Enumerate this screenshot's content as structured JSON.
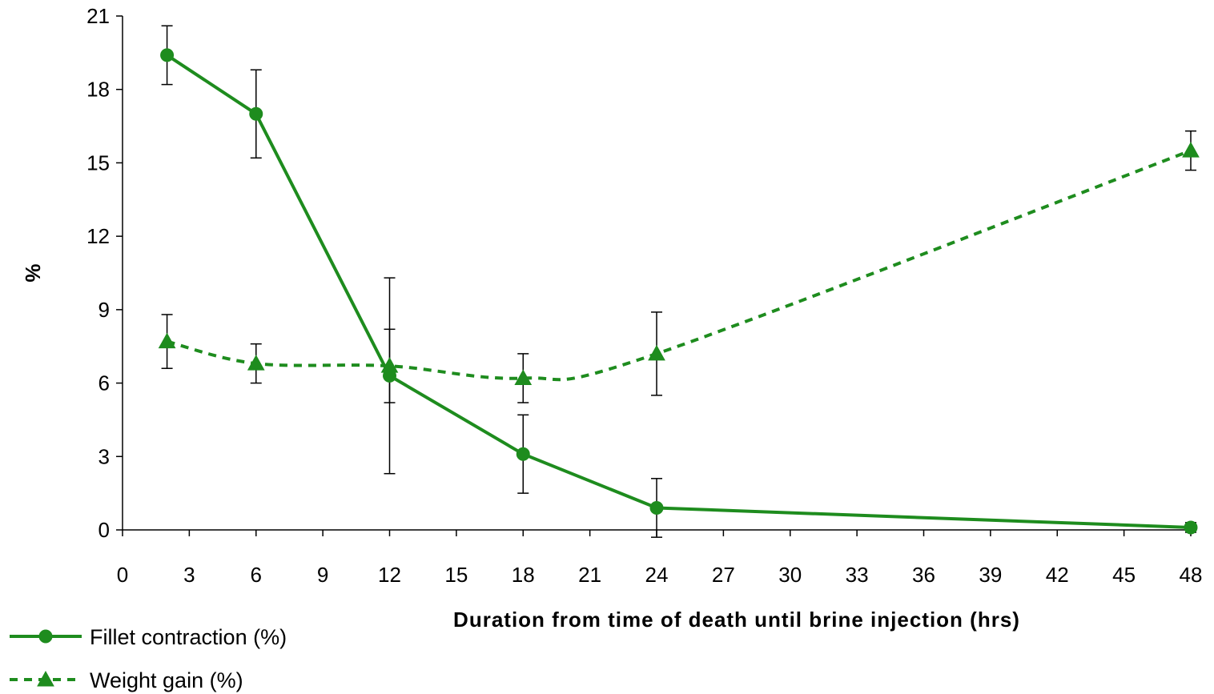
{
  "chart_data": {
    "type": "line",
    "title": "",
    "xlabel": "Duration from time of death until brine injection (hrs)",
    "ylabel": "%",
    "xlim": [
      0,
      48
    ],
    "ylim": [
      0,
      21
    ],
    "x_ticks": [
      0,
      3,
      6,
      9,
      12,
      15,
      18,
      21,
      24,
      27,
      30,
      33,
      36,
      39,
      42,
      45,
      48
    ],
    "y_ticks": [
      0,
      3,
      6,
      9,
      12,
      15,
      18,
      21
    ],
    "grid": false,
    "legend_position": "bottom-left",
    "series": [
      {
        "name": "Fillet contraction (%)",
        "marker": "circle",
        "line_style": "solid",
        "color": "#1e8c1e",
        "x": [
          2,
          6,
          12,
          18,
          24,
          48
        ],
        "y": [
          19.4,
          17.0,
          6.3,
          3.1,
          0.9,
          0.1
        ],
        "error": [
          1.2,
          1.8,
          4.0,
          1.6,
          1.2,
          0.2
        ]
      },
      {
        "name": "Weight gain (%)",
        "marker": "triangle",
        "line_style": "dashed",
        "color": "#1e8c1e",
        "x": [
          2,
          6,
          12,
          18,
          24,
          48
        ],
        "y": [
          7.7,
          6.8,
          6.7,
          6.2,
          7.2,
          15.5
        ],
        "error": [
          1.1,
          0.8,
          1.5,
          1.0,
          1.7,
          0.8
        ]
      }
    ]
  }
}
